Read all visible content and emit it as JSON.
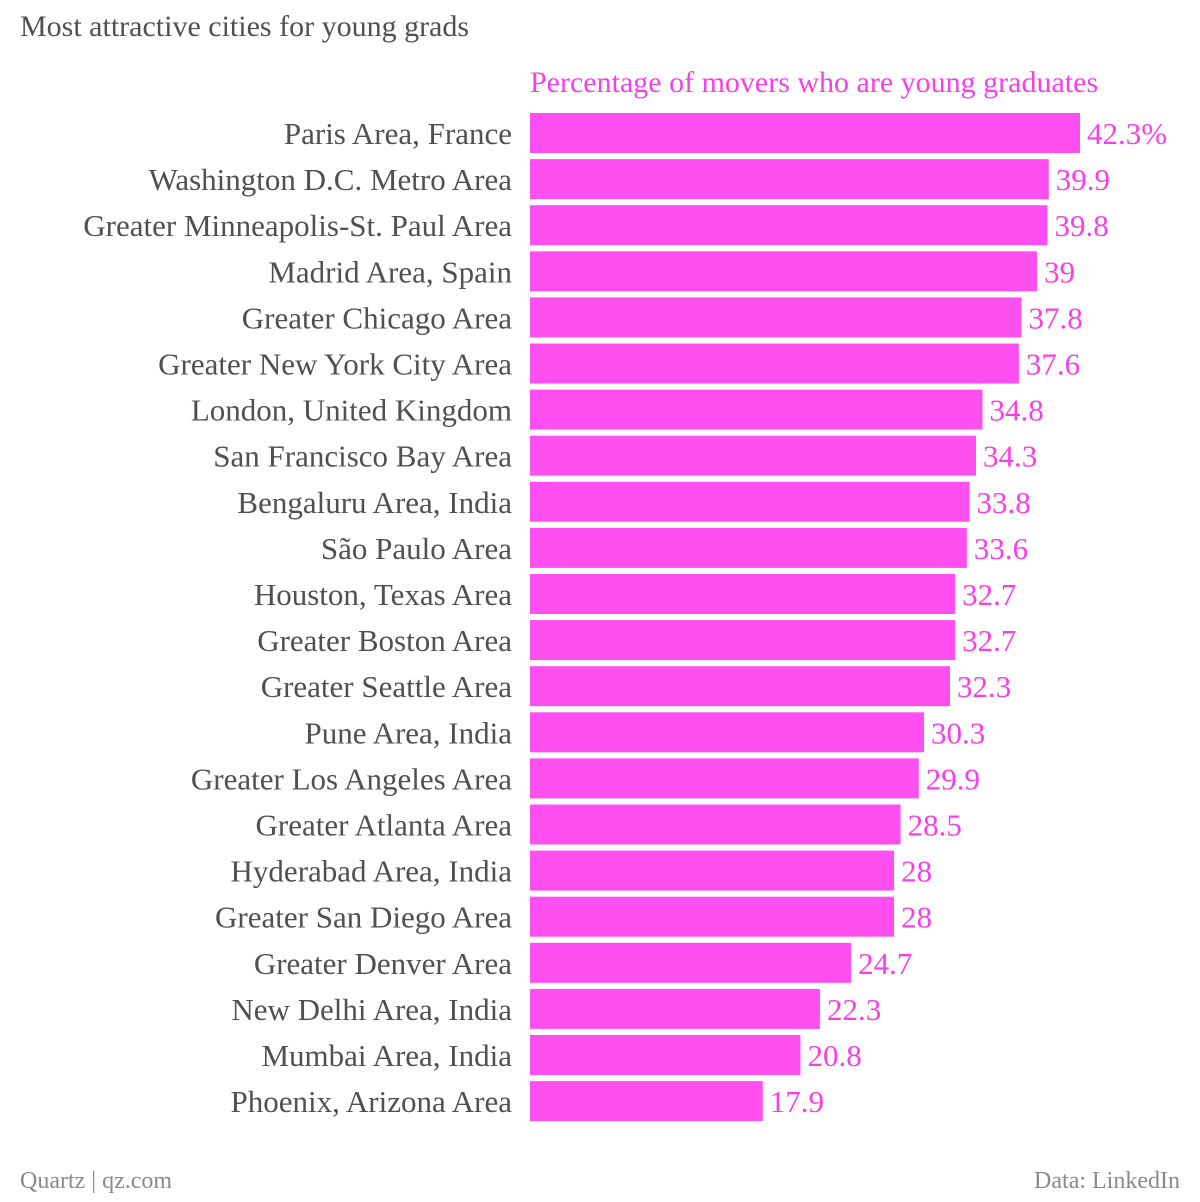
{
  "title": "Most attractive cities for young grads",
  "footer": {
    "source_left": "Quartz | qz.com",
    "source_right": "Data: LinkedIn"
  },
  "colors": {
    "bar": "#ff4ff0",
    "value_label": "#f83ee6",
    "category_label": "#505050",
    "title": "#505050",
    "footer": "#8a8a8a"
  },
  "chart_data": {
    "type": "bar",
    "orientation": "horizontal",
    "series_label": "Percentage of movers who are young graduates",
    "categories": [
      "Paris Area, France",
      "Washington D.C. Metro Area",
      "Greater Minneapolis-St. Paul Area",
      "Madrid Area, Spain",
      "Greater Chicago Area",
      "Greater New York City Area",
      "London, United Kingdom",
      "San Francisco Bay Area",
      "Bengaluru Area, India",
      "São Paulo Area",
      "Houston, Texas Area",
      "Greater Boston Area",
      "Greater Seattle Area",
      "Pune Area, India",
      "Greater Los Angeles Area",
      "Greater Atlanta Area",
      "Hyderabad Area, India",
      "Greater San Diego Area",
      "Greater Denver Area",
      "New Delhi Area, India",
      "Mumbai Area, India",
      "Phoenix, Arizona Area"
    ],
    "values": [
      42.3,
      39.9,
      39.8,
      39,
      37.8,
      37.6,
      34.8,
      34.3,
      33.8,
      33.6,
      32.7,
      32.7,
      32.3,
      30.3,
      29.9,
      28.5,
      28,
      28,
      24.7,
      22.3,
      20.8,
      17.9
    ],
    "value_labels": [
      "42.3%",
      "39.9",
      "39.8",
      "39",
      "37.8",
      "37.6",
      "34.8",
      "34.3",
      "33.8",
      "33.6",
      "32.7",
      "32.7",
      "32.3",
      "30.3",
      "29.9",
      "28.5",
      "28",
      "28",
      "24.7",
      "22.3",
      "20.8",
      "17.9"
    ],
    "xlim": [
      0,
      42.3
    ],
    "grid": false,
    "legend": "none"
  }
}
